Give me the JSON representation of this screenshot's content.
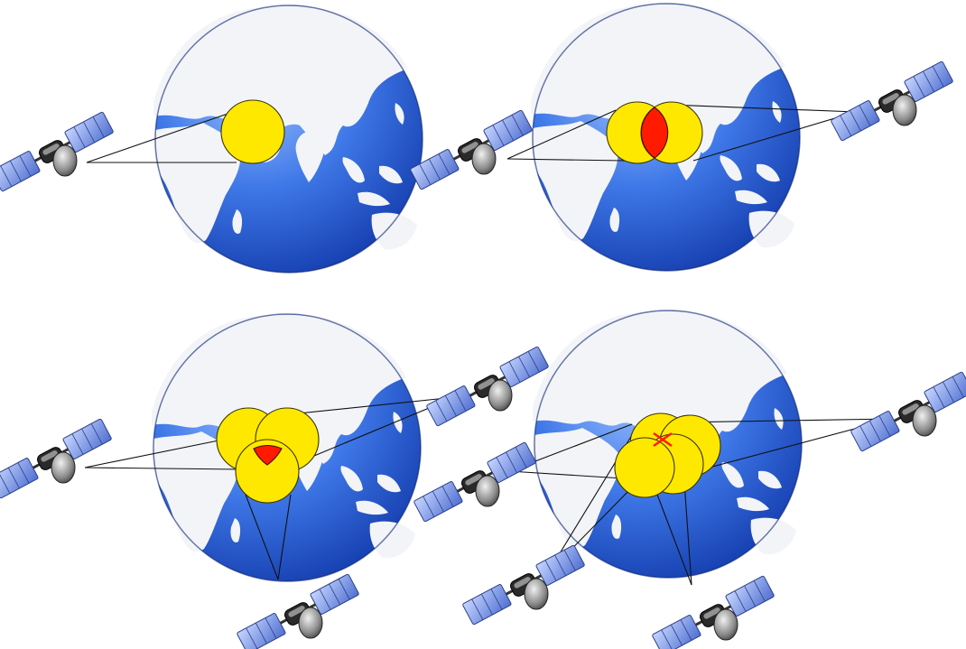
{
  "panels": [
    {
      "id": "one-satellite",
      "satellites": 1,
      "overlap": "none"
    },
    {
      "id": "two-satellites",
      "satellites": 2,
      "overlap": "lens"
    },
    {
      "id": "three-satellites",
      "satellites": 3,
      "overlap": "small-region"
    },
    {
      "id": "four-satellites",
      "satellites": 4,
      "overlap": "point"
    }
  ],
  "colors": {
    "ocean_light": "#6aa0ff",
    "ocean_dark": "#0a2fa0",
    "land": "#f2f4f8",
    "coverage_circle": "#ffe800",
    "intersection": "#ff1a00",
    "satellite_panel": "#6f8fe0",
    "satellite_body": "#2a2a2a",
    "satellite_dish": "#9a9a9a"
  },
  "icons": [
    "globe-icon",
    "satellite-icon",
    "coverage-circle",
    "intersection-marker"
  ]
}
